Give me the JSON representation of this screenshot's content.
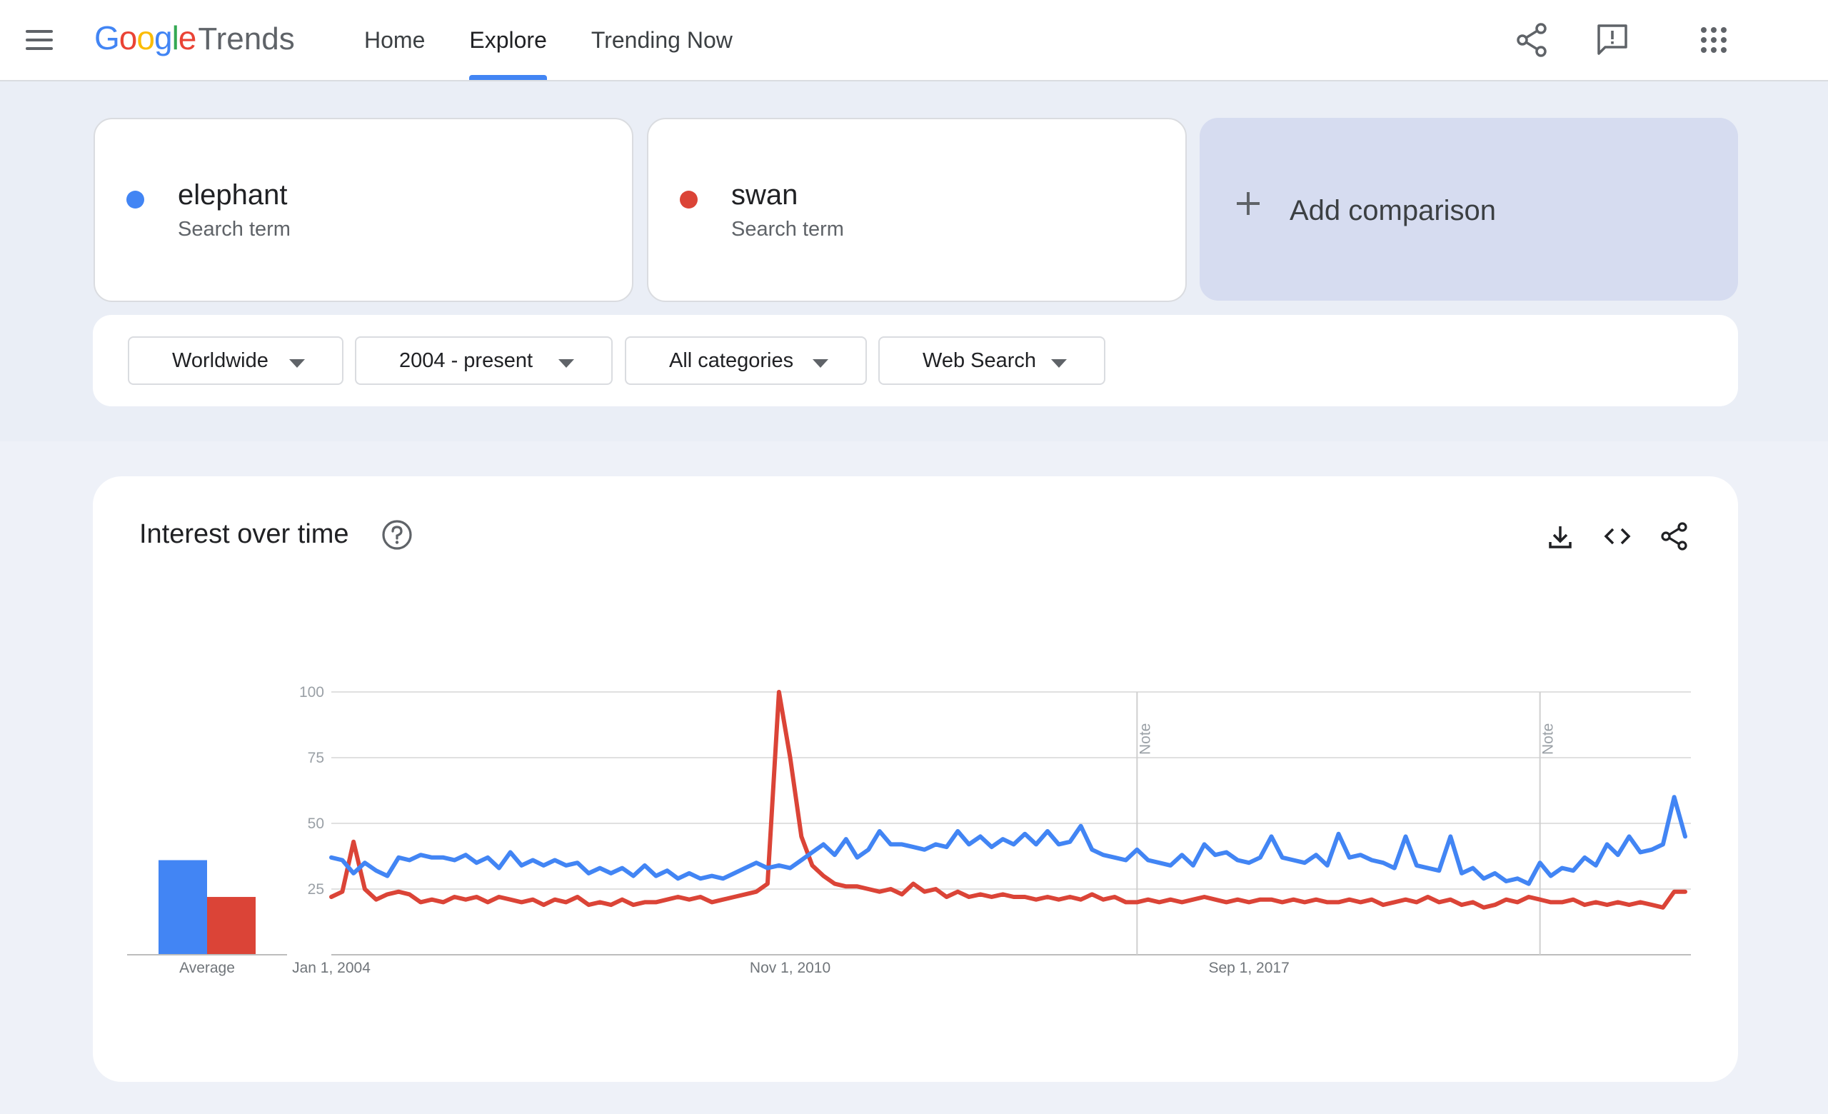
{
  "header": {
    "logo_google": "Google",
    "logo_trends": "Trends",
    "nav": [
      {
        "label": "Home",
        "active": false
      },
      {
        "label": "Explore",
        "active": true
      },
      {
        "label": "Trending Now",
        "active": false
      }
    ],
    "icons": [
      "menu-icon",
      "share-icon",
      "feedback-icon",
      "apps-grid-icon"
    ]
  },
  "terms": [
    {
      "name": "elephant",
      "type": "Search term",
      "color": "#4285f4"
    },
    {
      "name": "swan",
      "type": "Search term",
      "color": "#db4437"
    }
  ],
  "add_comparison": "Add comparison",
  "filters": [
    {
      "label": "Worldwide"
    },
    {
      "label": "2004 - present"
    },
    {
      "label": "All categories"
    },
    {
      "label": "Web Search"
    }
  ],
  "chart_section": {
    "title": "Interest over time",
    "icons": [
      "help-icon",
      "download-icon",
      "embed-icon",
      "share-icon"
    ]
  },
  "chart_data": {
    "type": "line",
    "y_ticks": [
      "100",
      "75",
      "50",
      "25"
    ],
    "ylim": [
      0,
      100
    ],
    "grid": true,
    "x_tick_labels": [
      {
        "label": "Jan 1, 2004",
        "date": "2004-01-01"
      },
      {
        "label": "Nov 1, 2010",
        "date": "2010-11-01"
      },
      {
        "label": "Sep 1, 2017",
        "date": "2017-09-01"
      }
    ],
    "x_range": [
      "2004-01-01",
      "2024-04-01"
    ],
    "notes": [
      {
        "label": "Note",
        "date": "2016-01-01"
      },
      {
        "label": "Note",
        "date": "2022-01-01"
      }
    ],
    "average": {
      "label": "Average",
      "values": [
        36,
        22
      ]
    },
    "series": [
      {
        "name": "elephant",
        "color": "#4285f4",
        "points": [
          [
            "2004-01-01",
            37
          ],
          [
            "2004-03-01",
            36
          ],
          [
            "2004-05-01",
            31
          ],
          [
            "2004-07-01",
            35
          ],
          [
            "2004-09-01",
            32
          ],
          [
            "2004-11-01",
            30
          ],
          [
            "2005-01-01",
            37
          ],
          [
            "2005-03-01",
            36
          ],
          [
            "2005-05-01",
            38
          ],
          [
            "2005-07-01",
            37
          ],
          [
            "2005-09-01",
            37
          ],
          [
            "2005-11-01",
            36
          ],
          [
            "2006-01-01",
            38
          ],
          [
            "2006-03-01",
            35
          ],
          [
            "2006-05-01",
            37
          ],
          [
            "2006-07-01",
            33
          ],
          [
            "2006-09-01",
            39
          ],
          [
            "2006-11-01",
            34
          ],
          [
            "2007-01-01",
            36
          ],
          [
            "2007-03-01",
            34
          ],
          [
            "2007-05-01",
            36
          ],
          [
            "2007-07-01",
            34
          ],
          [
            "2007-09-01",
            35
          ],
          [
            "2007-11-01",
            31
          ],
          [
            "2008-01-01",
            33
          ],
          [
            "2008-03-01",
            31
          ],
          [
            "2008-05-01",
            33
          ],
          [
            "2008-07-01",
            30
          ],
          [
            "2008-09-01",
            34
          ],
          [
            "2008-11-01",
            30
          ],
          [
            "2009-01-01",
            32
          ],
          [
            "2009-03-01",
            29
          ],
          [
            "2009-05-01",
            31
          ],
          [
            "2009-07-01",
            29
          ],
          [
            "2009-09-01",
            30
          ],
          [
            "2009-11-01",
            29
          ],
          [
            "2010-01-01",
            31
          ],
          [
            "2010-03-01",
            33
          ],
          [
            "2010-05-01",
            35
          ],
          [
            "2010-07-01",
            33
          ],
          [
            "2010-09-01",
            34
          ],
          [
            "2010-11-01",
            33
          ],
          [
            "2011-01-01",
            36
          ],
          [
            "2011-03-01",
            39
          ],
          [
            "2011-05-01",
            42
          ],
          [
            "2011-07-01",
            38
          ],
          [
            "2011-09-01",
            44
          ],
          [
            "2011-11-01",
            37
          ],
          [
            "2012-01-01",
            40
          ],
          [
            "2012-03-01",
            47
          ],
          [
            "2012-05-01",
            42
          ],
          [
            "2012-07-01",
            42
          ],
          [
            "2012-09-01",
            41
          ],
          [
            "2012-11-01",
            40
          ],
          [
            "2013-01-01",
            42
          ],
          [
            "2013-03-01",
            41
          ],
          [
            "2013-05-01",
            47
          ],
          [
            "2013-07-01",
            42
          ],
          [
            "2013-09-01",
            45
          ],
          [
            "2013-11-01",
            41
          ],
          [
            "2014-01-01",
            44
          ],
          [
            "2014-03-01",
            42
          ],
          [
            "2014-05-01",
            46
          ],
          [
            "2014-07-01",
            42
          ],
          [
            "2014-09-01",
            47
          ],
          [
            "2014-11-01",
            42
          ],
          [
            "2015-01-01",
            43
          ],
          [
            "2015-03-01",
            49
          ],
          [
            "2015-05-01",
            40
          ],
          [
            "2015-07-01",
            38
          ],
          [
            "2015-09-01",
            37
          ],
          [
            "2015-11-01",
            36
          ],
          [
            "2016-01-01",
            40
          ],
          [
            "2016-03-01",
            36
          ],
          [
            "2016-05-01",
            35
          ],
          [
            "2016-07-01",
            34
          ],
          [
            "2016-09-01",
            38
          ],
          [
            "2016-11-01",
            34
          ],
          [
            "2017-01-01",
            42
          ],
          [
            "2017-03-01",
            38
          ],
          [
            "2017-05-01",
            39
          ],
          [
            "2017-07-01",
            36
          ],
          [
            "2017-09-01",
            35
          ],
          [
            "2017-11-01",
            37
          ],
          [
            "2018-01-01",
            45
          ],
          [
            "2018-03-01",
            37
          ],
          [
            "2018-05-01",
            36
          ],
          [
            "2018-07-01",
            35
          ],
          [
            "2018-09-01",
            38
          ],
          [
            "2018-11-01",
            34
          ],
          [
            "2019-01-01",
            46
          ],
          [
            "2019-03-01",
            37
          ],
          [
            "2019-05-01",
            38
          ],
          [
            "2019-07-01",
            36
          ],
          [
            "2019-09-01",
            35
          ],
          [
            "2019-11-01",
            33
          ],
          [
            "2020-01-01",
            45
          ],
          [
            "2020-03-01",
            34
          ],
          [
            "2020-05-01",
            33
          ],
          [
            "2020-07-01",
            32
          ],
          [
            "2020-09-01",
            45
          ],
          [
            "2020-11-01",
            31
          ],
          [
            "2021-01-01",
            33
          ],
          [
            "2021-03-01",
            29
          ],
          [
            "2021-05-01",
            31
          ],
          [
            "2021-07-01",
            28
          ],
          [
            "2021-09-01",
            29
          ],
          [
            "2021-11-01",
            27
          ],
          [
            "2022-01-01",
            35
          ],
          [
            "2022-03-01",
            30
          ],
          [
            "2022-05-01",
            33
          ],
          [
            "2022-07-01",
            32
          ],
          [
            "2022-09-01",
            37
          ],
          [
            "2022-11-01",
            34
          ],
          [
            "2023-01-01",
            42
          ],
          [
            "2023-03-01",
            38
          ],
          [
            "2023-05-01",
            45
          ],
          [
            "2023-07-01",
            39
          ],
          [
            "2023-09-01",
            40
          ],
          [
            "2023-11-01",
            42
          ],
          [
            "2024-01-01",
            60
          ],
          [
            "2024-03-01",
            45
          ]
        ]
      },
      {
        "name": "swan",
        "color": "#db4437",
        "points": [
          [
            "2004-01-01",
            22
          ],
          [
            "2004-03-01",
            24
          ],
          [
            "2004-05-01",
            43
          ],
          [
            "2004-07-01",
            25
          ],
          [
            "2004-09-01",
            21
          ],
          [
            "2004-11-01",
            23
          ],
          [
            "2005-01-01",
            24
          ],
          [
            "2005-03-01",
            23
          ],
          [
            "2005-05-01",
            20
          ],
          [
            "2005-07-01",
            21
          ],
          [
            "2005-09-01",
            20
          ],
          [
            "2005-11-01",
            22
          ],
          [
            "2006-01-01",
            21
          ],
          [
            "2006-03-01",
            22
          ],
          [
            "2006-05-01",
            20
          ],
          [
            "2006-07-01",
            22
          ],
          [
            "2006-09-01",
            21
          ],
          [
            "2006-11-01",
            20
          ],
          [
            "2007-01-01",
            21
          ],
          [
            "2007-03-01",
            19
          ],
          [
            "2007-05-01",
            21
          ],
          [
            "2007-07-01",
            20
          ],
          [
            "2007-09-01",
            22
          ],
          [
            "2007-11-01",
            19
          ],
          [
            "2008-01-01",
            20
          ],
          [
            "2008-03-01",
            19
          ],
          [
            "2008-05-01",
            21
          ],
          [
            "2008-07-01",
            19
          ],
          [
            "2008-09-01",
            20
          ],
          [
            "2008-11-01",
            20
          ],
          [
            "2009-01-01",
            21
          ],
          [
            "2009-03-01",
            22
          ],
          [
            "2009-05-01",
            21
          ],
          [
            "2009-07-01",
            22
          ],
          [
            "2009-09-01",
            20
          ],
          [
            "2009-11-01",
            21
          ],
          [
            "2010-01-01",
            22
          ],
          [
            "2010-03-01",
            23
          ],
          [
            "2010-05-01",
            24
          ],
          [
            "2010-07-01",
            27
          ],
          [
            "2010-09-01",
            100
          ],
          [
            "2010-11-01",
            75
          ],
          [
            "2011-01-01",
            45
          ],
          [
            "2011-03-01",
            34
          ],
          [
            "2011-05-01",
            30
          ],
          [
            "2011-07-01",
            27
          ],
          [
            "2011-09-01",
            26
          ],
          [
            "2011-11-01",
            26
          ],
          [
            "2012-01-01",
            25
          ],
          [
            "2012-03-01",
            24
          ],
          [
            "2012-05-01",
            25
          ],
          [
            "2012-07-01",
            23
          ],
          [
            "2012-09-01",
            27
          ],
          [
            "2012-11-01",
            24
          ],
          [
            "2013-01-01",
            25
          ],
          [
            "2013-03-01",
            22
          ],
          [
            "2013-05-01",
            24
          ],
          [
            "2013-07-01",
            22
          ],
          [
            "2013-09-01",
            23
          ],
          [
            "2013-11-01",
            22
          ],
          [
            "2014-01-01",
            23
          ],
          [
            "2014-03-01",
            22
          ],
          [
            "2014-05-01",
            22
          ],
          [
            "2014-07-01",
            21
          ],
          [
            "2014-09-01",
            22
          ],
          [
            "2014-11-01",
            21
          ],
          [
            "2015-01-01",
            22
          ],
          [
            "2015-03-01",
            21
          ],
          [
            "2015-05-01",
            23
          ],
          [
            "2015-07-01",
            21
          ],
          [
            "2015-09-01",
            22
          ],
          [
            "2015-11-01",
            20
          ],
          [
            "2016-01-01",
            20
          ],
          [
            "2016-03-01",
            21
          ],
          [
            "2016-05-01",
            20
          ],
          [
            "2016-07-01",
            21
          ],
          [
            "2016-09-01",
            20
          ],
          [
            "2016-11-01",
            21
          ],
          [
            "2017-01-01",
            22
          ],
          [
            "2017-03-01",
            21
          ],
          [
            "2017-05-01",
            20
          ],
          [
            "2017-07-01",
            21
          ],
          [
            "2017-09-01",
            20
          ],
          [
            "2017-11-01",
            21
          ],
          [
            "2018-01-01",
            21
          ],
          [
            "2018-03-01",
            20
          ],
          [
            "2018-05-01",
            21
          ],
          [
            "2018-07-01",
            20
          ],
          [
            "2018-09-01",
            21
          ],
          [
            "2018-11-01",
            20
          ],
          [
            "2019-01-01",
            20
          ],
          [
            "2019-03-01",
            21
          ],
          [
            "2019-05-01",
            20
          ],
          [
            "2019-07-01",
            21
          ],
          [
            "2019-09-01",
            19
          ],
          [
            "2019-11-01",
            20
          ],
          [
            "2020-01-01",
            21
          ],
          [
            "2020-03-01",
            20
          ],
          [
            "2020-05-01",
            22
          ],
          [
            "2020-07-01",
            20
          ],
          [
            "2020-09-01",
            21
          ],
          [
            "2020-11-01",
            19
          ],
          [
            "2021-01-01",
            20
          ],
          [
            "2021-03-01",
            18
          ],
          [
            "2021-05-01",
            19
          ],
          [
            "2021-07-01",
            21
          ],
          [
            "2021-09-01",
            20
          ],
          [
            "2021-11-01",
            22
          ],
          [
            "2022-01-01",
            21
          ],
          [
            "2022-03-01",
            20
          ],
          [
            "2022-05-01",
            20
          ],
          [
            "2022-07-01",
            21
          ],
          [
            "2022-09-01",
            19
          ],
          [
            "2022-11-01",
            20
          ],
          [
            "2023-01-01",
            19
          ],
          [
            "2023-03-01",
            20
          ],
          [
            "2023-05-01",
            19
          ],
          [
            "2023-07-01",
            20
          ],
          [
            "2023-09-01",
            19
          ],
          [
            "2023-11-01",
            18
          ],
          [
            "2024-01-01",
            24
          ],
          [
            "2024-03-01",
            24
          ]
        ]
      }
    ]
  }
}
